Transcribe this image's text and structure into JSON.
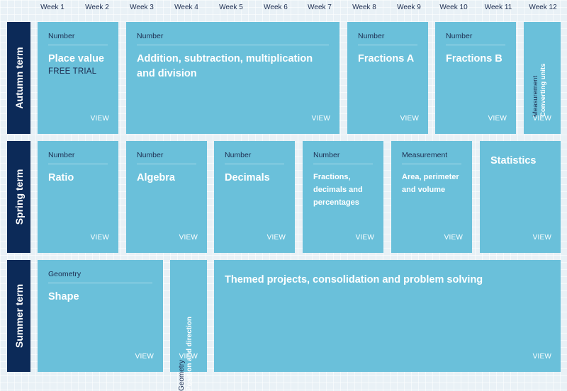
{
  "weeks": [
    "Week 1",
    "Week 2",
    "Week 3",
    "Week 4",
    "Week 5",
    "Week 6",
    "Week 7",
    "Week 8",
    "Week 9",
    "Week 10",
    "Week 11",
    "Week 12"
  ],
  "terms": {
    "autumn": "Autumn term",
    "spring": "Spring term",
    "summer": "Summer term"
  },
  "view_label": "VIEW",
  "autumn": {
    "place_value": {
      "category": "Number",
      "title": "Place value",
      "badge": "FREE TRIAL"
    },
    "addition": {
      "category": "Number",
      "title": "Addition, subtraction, multiplication and division"
    },
    "fractions_a": {
      "category": "Number",
      "title": "Fractions A"
    },
    "fractions_b": {
      "category": "Number",
      "title": "Fractions B"
    },
    "converting_units": {
      "category": "Measurement",
      "title": "Converting units"
    }
  },
  "spring": {
    "ratio": {
      "category": "Number",
      "title": "Ratio"
    },
    "algebra": {
      "category": "Number",
      "title": "Algebra"
    },
    "decimals": {
      "category": "Number",
      "title": "Decimals"
    },
    "fdp": {
      "category": "Number",
      "title": "Fractions, decimals and percentages"
    },
    "area": {
      "category": "Measurement",
      "title": "Area, perimeter and volume"
    },
    "statistics": {
      "title": "Statistics"
    }
  },
  "summer": {
    "shape": {
      "category": "Geometry",
      "title": "Shape"
    },
    "position": {
      "category": "Geometry",
      "title": "Position and direction"
    },
    "themed": {
      "title": "Themed projects, consolidation and problem solving"
    }
  }
}
